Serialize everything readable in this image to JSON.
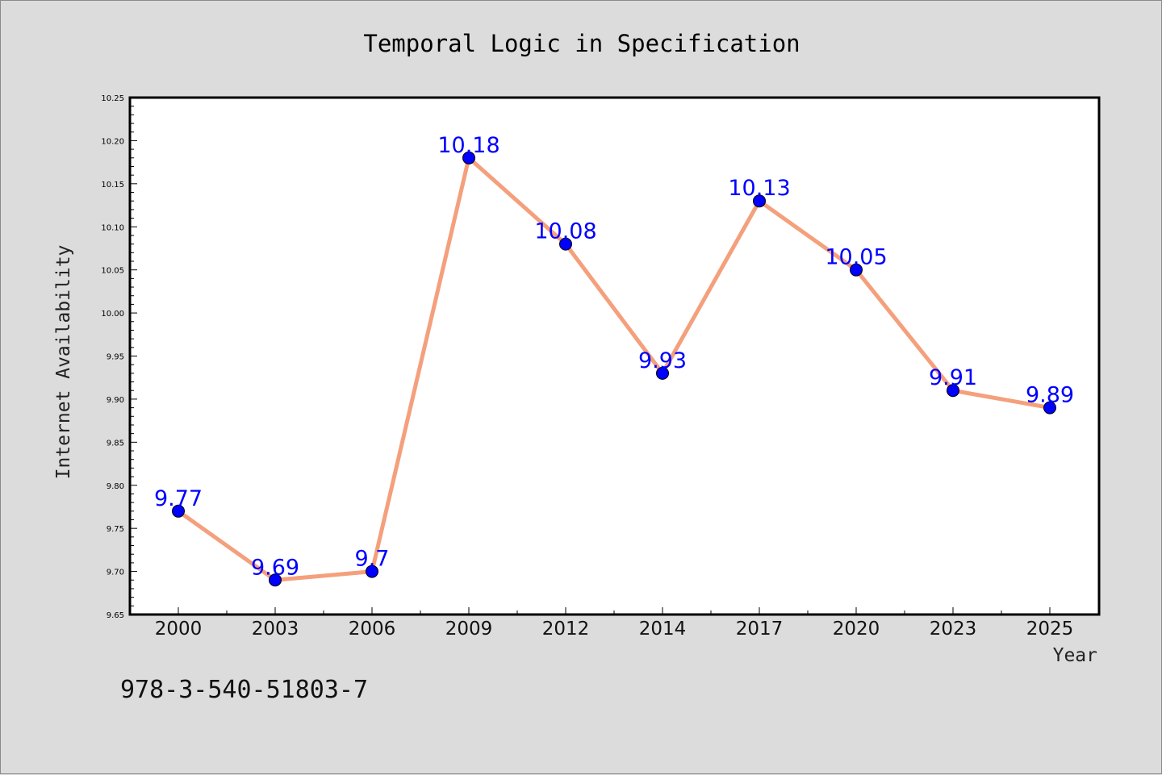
{
  "colors": {
    "background": "#dcdcdc",
    "plot_background": "#ffffff",
    "line": "#f4a07c",
    "marker": "#0000ff",
    "data_label": "#0000ff"
  },
  "footer": {
    "isbn": "978-3-540-51803-7"
  },
  "chart_data": {
    "type": "line",
    "title": "Temporal Logic in Specification",
    "xlabel": "Year",
    "ylabel": "Internet Availability",
    "categories": [
      "2000",
      "2003",
      "2006",
      "2009",
      "2012",
      "2014",
      "2017",
      "2020",
      "2023",
      "2025"
    ],
    "series": [
      {
        "values": [
          9.77,
          9.69,
          9.7,
          10.18,
          10.08,
          9.93,
          10.13,
          10.05,
          9.91,
          9.89
        ]
      }
    ],
    "data_labels": [
      "9.77",
      "9.69",
      "9.7",
      "10.18",
      "10.08",
      "9.93",
      "10.13",
      "10.05",
      "9.91",
      "9.89"
    ],
    "ylim": [
      9.65,
      10.25
    ],
    "yticks": [
      "9.65",
      "9.70",
      "9.75",
      "9.80",
      "9.85",
      "9.90",
      "9.95",
      "10.00",
      "10.05",
      "10.10",
      "10.15",
      "10.20",
      "10.25"
    ],
    "grid": false,
    "legend": "none"
  }
}
